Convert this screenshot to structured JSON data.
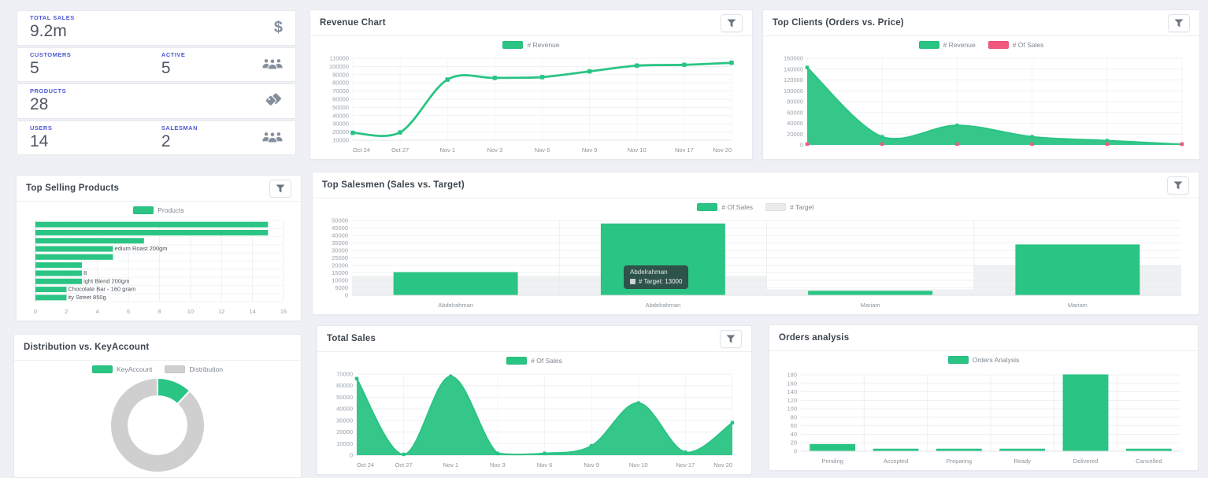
{
  "colors": {
    "green": "#2ac484",
    "pink": "#f0587e",
    "gray": "#cfcfcf",
    "target_gray": "#e9ebec",
    "accent_blue": "#4d5bd3"
  },
  "stats": {
    "cards": [
      {
        "label": "TOTAL SALES",
        "value": "9.2m",
        "icon": "dollar-icon"
      },
      {
        "label": "CUSTOMERS",
        "value": "5",
        "label2": "ACTIVE",
        "value2": "5",
        "icon": "users-icon"
      },
      {
        "label": "PRODUCTS",
        "value": "28",
        "icon": "tags-icon"
      },
      {
        "label": "USERS",
        "value": "14",
        "label2": "SALESMAN",
        "value2": "2",
        "icon": "users-icon"
      }
    ]
  },
  "chart_data": [
    {
      "id": "revenue",
      "type": "line",
      "title": "Revenue Chart",
      "has_filter": true,
      "legend": [
        {
          "label": "# Revenue",
          "color": "#2ac484"
        }
      ],
      "x": [
        "Oct 24",
        "Oct 27",
        "Nov 1",
        "Nov 3",
        "Nov 6",
        "Nov 9",
        "Nov 10",
        "Nov 17",
        "Nov 20"
      ],
      "series": [
        {
          "name": "# Revenue",
          "color": "#2ac484",
          "values": [
            19000,
            19500,
            84000,
            86000,
            87000,
            94000,
            101000,
            102000,
            104500
          ]
        }
      ],
      "ylim": [
        10000,
        110000
      ],
      "ytick": 10000,
      "grid": true,
      "legend_position": "top"
    },
    {
      "id": "top_clients",
      "type": "area",
      "title": "Top Clients (Orders vs. Price)",
      "has_filter": true,
      "legend": [
        {
          "label": "# Revenue",
          "color": "#2ac484"
        },
        {
          "label": "# Of Sales",
          "color": "#f0587e"
        }
      ],
      "x": [
        "",
        "",
        "",
        "",
        "",
        ""
      ],
      "series": [
        {
          "name": "# Revenue",
          "color": "#2ac484",
          "fill": true,
          "values": [
            143000,
            15000,
            36000,
            15000,
            8000,
            1000
          ]
        },
        {
          "name": "# Of Sales",
          "color": "#f0587e",
          "markers_only": true,
          "values": [
            500,
            500,
            500,
            500,
            500,
            500
          ]
        }
      ],
      "ylim": [
        0,
        160000
      ],
      "ytick": 20000,
      "grid": true,
      "legend_position": "top"
    },
    {
      "id": "top_selling_products",
      "type": "hbar",
      "title": "Top Selling Products",
      "has_filter": true,
      "legend": [
        {
          "label": "Products",
          "color": "#2ac484"
        }
      ],
      "values": [
        15,
        15,
        7,
        5,
        5,
        3,
        3,
        3,
        2,
        2
      ],
      "bar_labels": [
        "",
        "",
        "",
        "edium Roast 200gm",
        "",
        "",
        "8",
        "ight Blend 200gm",
        "Chocolate Bar - 160 gram",
        "ity Street 850g"
      ],
      "xlim": [
        0,
        16
      ],
      "xtick": 2,
      "bar_color": "#2ac484",
      "legend_position": "top"
    },
    {
      "id": "top_salesmen",
      "type": "bar",
      "title": "Top Salesmen (Sales vs. Target)",
      "has_filter": true,
      "legend": [
        {
          "label": "# Of Sales",
          "color": "#2ac484"
        },
        {
          "label": "# Target",
          "color": "#e9ebec"
        }
      ],
      "categories": [
        "Abdelrahman",
        "Abdelrahman",
        "Mariam",
        "Mariam"
      ],
      "series": [
        {
          "name": "# Of Sales",
          "color": "#2ac484",
          "values": [
            15500,
            48000,
            3000,
            34000
          ]
        },
        {
          "name": "# Target",
          "color": "#e9ebec",
          "background": true,
          "values": [
            13000,
            13000,
            4000,
            20000
          ]
        }
      ],
      "ylim": [
        0,
        50000
      ],
      "ytick": 5000,
      "legend_position": "top",
      "tooltip": {
        "title": "Abdelrahman",
        "text": "# Target: 13000",
        "swatch": "#cfd4d2"
      }
    },
    {
      "id": "distribution_keyaccount",
      "type": "donut",
      "title": "Distribution vs. KeyAccount",
      "has_filter": false,
      "legend": [
        {
          "label": "KeyAccount",
          "color": "#2ac484"
        },
        {
          "label": "Distribution",
          "color": "#cfcfcf"
        }
      ],
      "slices": [
        {
          "label": "KeyAccount",
          "fraction": 0.12,
          "color": "#2ac484"
        },
        {
          "label": "Distribution",
          "fraction": 0.88,
          "color": "#cfcfcf"
        }
      ],
      "legend_position": "top"
    },
    {
      "id": "total_sales",
      "type": "area",
      "title": "Total Sales",
      "has_filter": true,
      "legend": [
        {
          "label": "# Of Sales",
          "color": "#2ac484"
        }
      ],
      "x": [
        "Oct 24",
        "Oct 27",
        "Nov 1",
        "Nov 3",
        "Nov 6",
        "Nov 9",
        "Nov 10",
        "Nov 17",
        "Nov 20"
      ],
      "series": [
        {
          "name": "# Of Sales",
          "color": "#2ac484",
          "fill": true,
          "values": [
            66000,
            500,
            68000,
            1500,
            1500,
            8000,
            45000,
            2500,
            28000
          ]
        }
      ],
      "ylim": [
        0,
        70000
      ],
      "ytick": 10000,
      "grid": true,
      "legend_position": "top"
    },
    {
      "id": "orders_analysis",
      "type": "bar",
      "title": "Orders analysis",
      "has_filter": false,
      "legend": [
        {
          "label": "Orders Analysis",
          "color": "#2ac484"
        }
      ],
      "categories": [
        "Pending",
        "Accepted",
        "Preparing",
        "Ready",
        "Delivered",
        "Cancelled"
      ],
      "series": [
        {
          "name": "Orders Analysis",
          "color": "#2ac484",
          "values": [
            17,
            6,
            6,
            6,
            181,
            6
          ]
        }
      ],
      "ylim": [
        0,
        180
      ],
      "ytick": 20,
      "legend_position": "top"
    }
  ]
}
